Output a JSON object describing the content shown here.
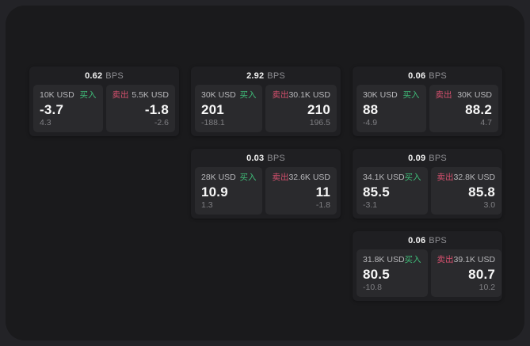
{
  "labels": {
    "bps_unit": "BPS",
    "buy": "买入",
    "sell": "卖出"
  },
  "colors": {
    "buy_green": "#3fbd79",
    "sell_red": "#d6506e"
  },
  "cards": [
    {
      "row": 1,
      "col": 1,
      "bps": "0.62",
      "buy": {
        "amount": "10K USD",
        "main": "-3.7",
        "sub": "4.3"
      },
      "sell": {
        "amount": "5.5K USD",
        "main": "-1.8",
        "sub": "-2.6"
      }
    },
    {
      "row": 1,
      "col": 2,
      "bps": "2.92",
      "buy": {
        "amount": "30K USD",
        "main": "201",
        "sub": "-188.1"
      },
      "sell": {
        "amount": "30.1K USD",
        "main": "210",
        "sub": "196.5"
      }
    },
    {
      "row": 1,
      "col": 3,
      "bps": "0.06",
      "buy": {
        "amount": "30K USD",
        "main": "88",
        "sub": "-4.9"
      },
      "sell": {
        "amount": "30K USD",
        "main": "88.2",
        "sub": "4.7"
      }
    },
    {
      "row": 2,
      "col": 2,
      "bps": "0.03",
      "buy": {
        "amount": "28K USD",
        "main": "10.9",
        "sub": "1.3"
      },
      "sell": {
        "amount": "32.6K USD",
        "main": "11",
        "sub": "-1.8"
      }
    },
    {
      "row": 2,
      "col": 3,
      "bps": "0.09",
      "buy": {
        "amount": "34.1K USD",
        "main": "85.5",
        "sub": "-3.1"
      },
      "sell": {
        "amount": "32.8K USD",
        "main": "85.8",
        "sub": "3.0"
      }
    },
    {
      "row": 3,
      "col": 3,
      "bps": "0.06",
      "buy": {
        "amount": "31.8K USD",
        "main": "80.5",
        "sub": "-10.8"
      },
      "sell": {
        "amount": "39.1K USD",
        "main": "80.7",
        "sub": "10.2"
      }
    }
  ]
}
